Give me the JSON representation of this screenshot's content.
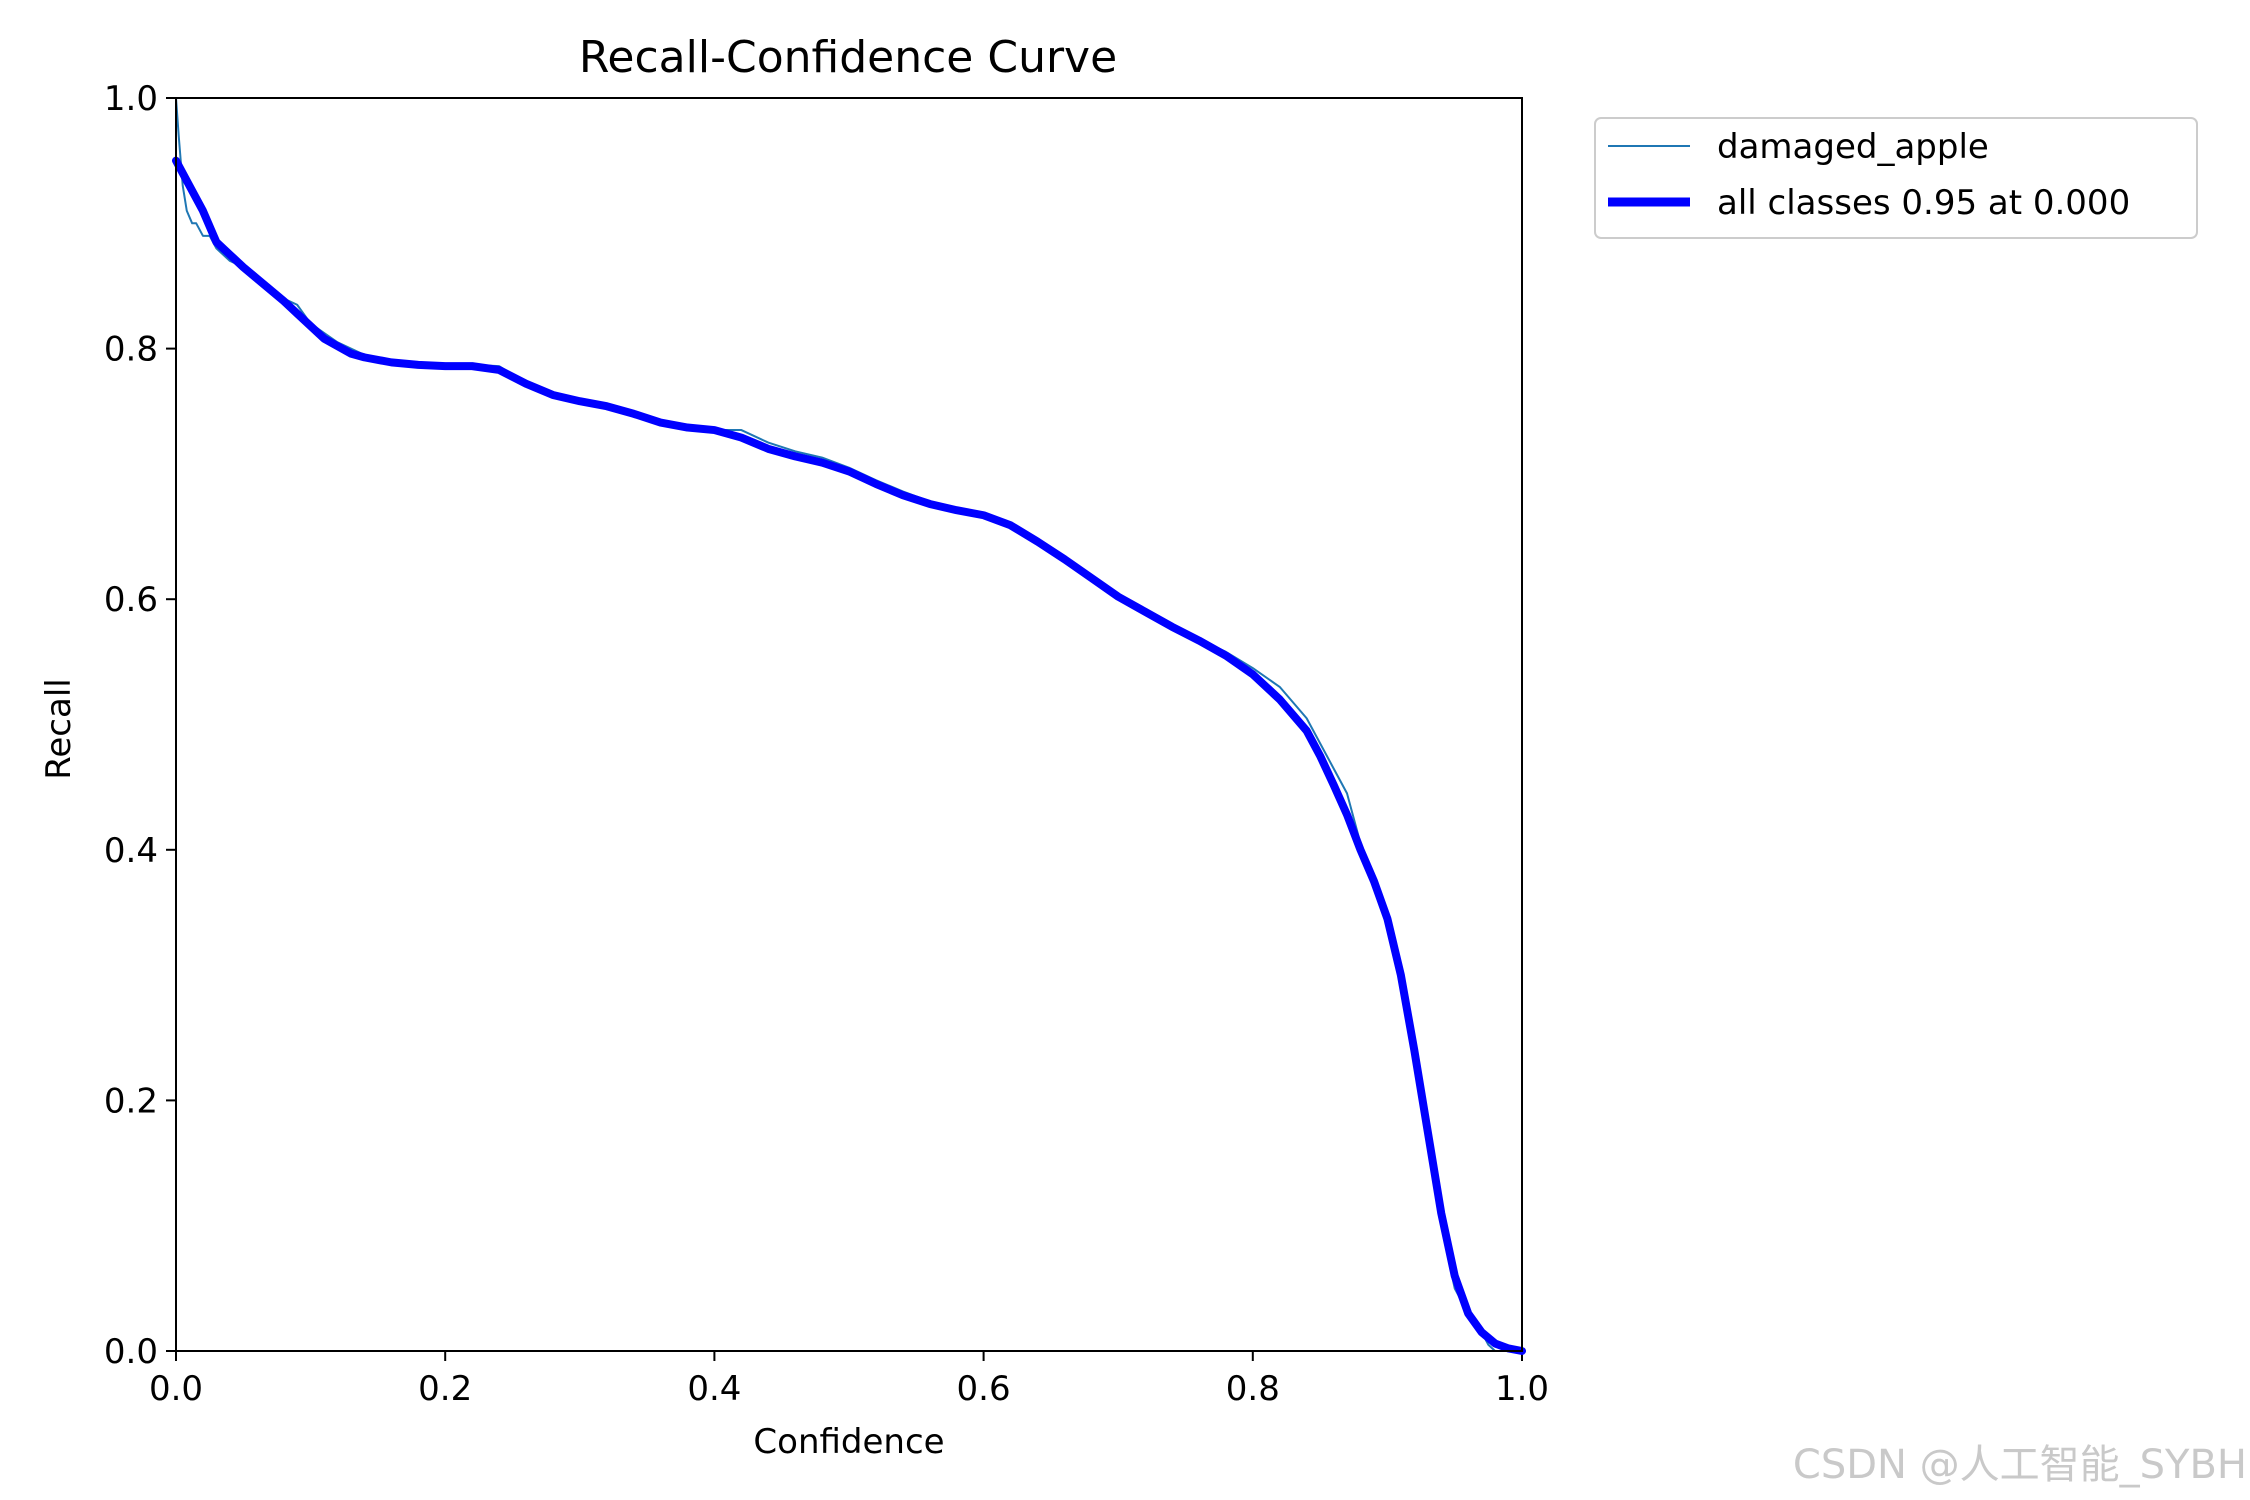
{
  "watermark": "CSDN @人工智能_SYBH",
  "chart_data": {
    "type": "line",
    "title": "Recall-Confidence Curve",
    "xlabel": "Confidence",
    "ylabel": "Recall",
    "xlim": [
      0.0,
      1.0
    ],
    "ylim": [
      0.0,
      1.0
    ],
    "xticks": [
      "0.0",
      "0.2",
      "0.4",
      "0.6",
      "0.8",
      "1.0"
    ],
    "yticks": [
      "0.0",
      "0.2",
      "0.4",
      "0.6",
      "0.8",
      "1.0"
    ],
    "grid": false,
    "legend_position": "outside-top-right",
    "series": [
      {
        "name": "damaged_apple",
        "color": "#1f77b4",
        "x": [
          0.0,
          0.002,
          0.005,
          0.008,
          0.012,
          0.015,
          0.02,
          0.025,
          0.03,
          0.04,
          0.05,
          0.06,
          0.07,
          0.08,
          0.09,
          0.1,
          0.12,
          0.14,
          0.16,
          0.18,
          0.2,
          0.22,
          0.24,
          0.26,
          0.28,
          0.3,
          0.32,
          0.34,
          0.36,
          0.38,
          0.4,
          0.42,
          0.44,
          0.46,
          0.48,
          0.5,
          0.52,
          0.54,
          0.56,
          0.58,
          0.6,
          0.62,
          0.64,
          0.66,
          0.68,
          0.7,
          0.72,
          0.74,
          0.76,
          0.78,
          0.8,
          0.82,
          0.84,
          0.86,
          0.87,
          0.88,
          0.89,
          0.9,
          0.91,
          0.92,
          0.93,
          0.94,
          0.95,
          0.96,
          0.965,
          0.97,
          0.975,
          0.98
        ],
        "y": [
          1.0,
          0.97,
          0.93,
          0.91,
          0.9,
          0.9,
          0.89,
          0.89,
          0.88,
          0.87,
          0.865,
          0.858,
          0.85,
          0.84,
          0.835,
          0.82,
          0.805,
          0.795,
          0.79,
          0.788,
          0.787,
          0.787,
          0.786,
          0.773,
          0.765,
          0.758,
          0.753,
          0.748,
          0.74,
          0.738,
          0.735,
          0.735,
          0.725,
          0.718,
          0.713,
          0.705,
          0.695,
          0.686,
          0.678,
          0.672,
          0.668,
          0.66,
          0.646,
          0.632,
          0.617,
          0.603,
          0.592,
          0.58,
          0.568,
          0.558,
          0.545,
          0.53,
          0.505,
          0.465,
          0.445,
          0.405,
          0.38,
          0.345,
          0.295,
          0.235,
          0.17,
          0.1,
          0.05,
          0.03,
          0.025,
          0.015,
          0.005,
          0.0
        ]
      },
      {
        "name": "all classes 0.95 at 0.000",
        "color": "#0000ff",
        "x": [
          0.0,
          0.01,
          0.02,
          0.03,
          0.04,
          0.05,
          0.06,
          0.07,
          0.08,
          0.09,
          0.1,
          0.11,
          0.12,
          0.13,
          0.14,
          0.16,
          0.18,
          0.2,
          0.22,
          0.24,
          0.26,
          0.28,
          0.3,
          0.32,
          0.34,
          0.36,
          0.38,
          0.4,
          0.42,
          0.44,
          0.46,
          0.48,
          0.5,
          0.52,
          0.54,
          0.56,
          0.58,
          0.6,
          0.62,
          0.64,
          0.66,
          0.68,
          0.7,
          0.72,
          0.74,
          0.76,
          0.78,
          0.8,
          0.82,
          0.84,
          0.85,
          0.86,
          0.87,
          0.88,
          0.89,
          0.9,
          0.91,
          0.92,
          0.93,
          0.94,
          0.95,
          0.96,
          0.97,
          0.98,
          0.99,
          1.0
        ],
        "y": [
          0.95,
          0.93,
          0.91,
          0.885,
          0.875,
          0.865,
          0.856,
          0.847,
          0.838,
          0.828,
          0.818,
          0.808,
          0.802,
          0.796,
          0.793,
          0.789,
          0.787,
          0.786,
          0.786,
          0.783,
          0.772,
          0.763,
          0.758,
          0.754,
          0.748,
          0.741,
          0.737,
          0.735,
          0.729,
          0.72,
          0.714,
          0.709,
          0.702,
          0.692,
          0.683,
          0.676,
          0.671,
          0.667,
          0.659,
          0.646,
          0.632,
          0.617,
          0.602,
          0.59,
          0.578,
          0.567,
          0.555,
          0.54,
          0.52,
          0.495,
          0.475,
          0.452,
          0.428,
          0.4,
          0.375,
          0.345,
          0.3,
          0.24,
          0.175,
          0.11,
          0.06,
          0.03,
          0.015,
          0.006,
          0.002,
          0.0
        ]
      }
    ]
  }
}
